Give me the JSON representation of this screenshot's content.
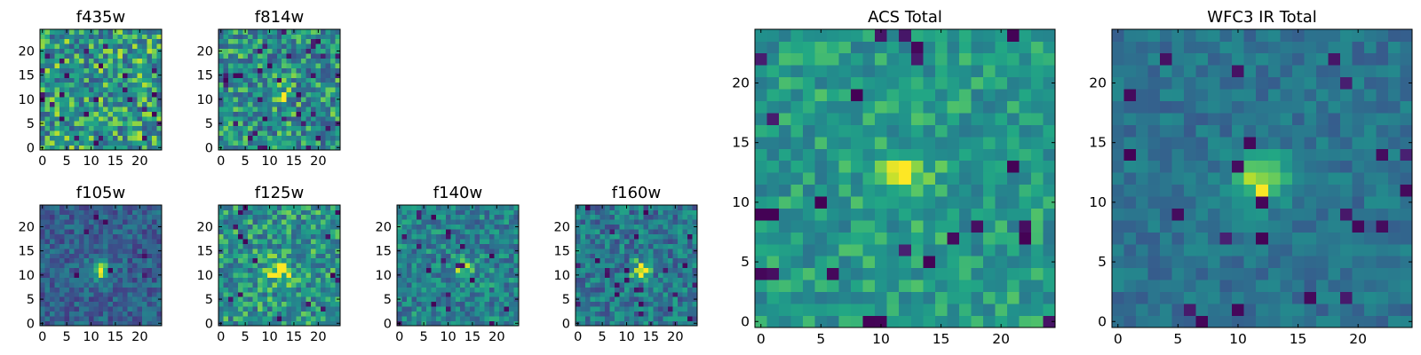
{
  "chart_data": [
    {
      "type": "heatmap",
      "title": "f435w",
      "x_ticks": [
        "0",
        "5",
        "10",
        "15",
        "20"
      ],
      "y_ticks": [
        "0",
        "5",
        "10",
        "15",
        "20"
      ],
      "grid_size": [
        25,
        25
      ],
      "xlim": [
        0,
        25
      ],
      "ylim": [
        0,
        25
      ],
      "colormap": "viridis",
      "pattern": "uniform noise, no central source"
    },
    {
      "type": "heatmap",
      "title": "f814w",
      "x_ticks": [
        "0",
        "5",
        "10",
        "15",
        "20"
      ],
      "y_ticks": [
        "0",
        "5",
        "10",
        "15",
        "20"
      ],
      "grid_size": [
        25,
        25
      ],
      "xlim": [
        0,
        25
      ],
      "ylim": [
        0,
        25
      ],
      "colormap": "viridis",
      "pattern": "noise with faint central source",
      "source_center": [
        12,
        11
      ]
    },
    {
      "type": "heatmap",
      "title": "f105w",
      "x_ticks": [
        "0",
        "5",
        "10",
        "15",
        "20"
      ],
      "y_ticks": [
        "0",
        "5",
        "10",
        "15",
        "20"
      ],
      "grid_size": [
        25,
        25
      ],
      "xlim": [
        0,
        25
      ],
      "ylim": [
        0,
        25
      ],
      "colormap": "viridis",
      "pattern": "darker background with bright central source",
      "source_center": [
        12,
        11
      ]
    },
    {
      "type": "heatmap",
      "title": "f125w",
      "x_ticks": [
        "0",
        "5",
        "10",
        "15",
        "20"
      ],
      "y_ticks": [
        "0",
        "5",
        "10",
        "15",
        "20"
      ],
      "grid_size": [
        25,
        25
      ],
      "xlim": [
        0,
        25
      ],
      "ylim": [
        0,
        25
      ],
      "colormap": "viridis",
      "pattern": "bright noisy background with central source",
      "source_center": [
        12,
        11
      ]
    },
    {
      "type": "heatmap",
      "title": "f140w",
      "x_ticks": [
        "0",
        "5",
        "10",
        "15",
        "20"
      ],
      "y_ticks": [
        "0",
        "5",
        "10",
        "15",
        "20"
      ],
      "grid_size": [
        25,
        25
      ],
      "xlim": [
        0,
        25
      ],
      "ylim": [
        0,
        25
      ],
      "colormap": "viridis",
      "pattern": "noise with compact central source",
      "source_center": [
        13,
        12
      ]
    },
    {
      "type": "heatmap",
      "title": "f160w",
      "x_ticks": [
        "0",
        "5",
        "10",
        "15",
        "20"
      ],
      "y_ticks": [
        "0",
        "5",
        "10",
        "15",
        "20"
      ],
      "grid_size": [
        25,
        25
      ],
      "xlim": [
        0,
        25
      ],
      "ylim": [
        0,
        25
      ],
      "colormap": "viridis",
      "pattern": "noise with compact central source",
      "source_center": [
        13,
        11
      ]
    },
    {
      "type": "heatmap",
      "title": "ACS Total",
      "x_ticks": [
        "0",
        "5",
        "10",
        "15",
        "20"
      ],
      "y_ticks": [
        "0",
        "5",
        "10",
        "15",
        "20"
      ],
      "grid_size": [
        25,
        25
      ],
      "xlim": [
        0,
        25
      ],
      "ylim": [
        0,
        25
      ],
      "colormap": "viridis",
      "pattern": "bright noisy background with central source",
      "source_center": [
        12,
        12
      ]
    },
    {
      "type": "heatmap",
      "title": "WFC3 IR Total",
      "x_ticks": [
        "0",
        "5",
        "10",
        "15",
        "20"
      ],
      "y_ticks": [
        "0",
        "5",
        "10",
        "15",
        "20"
      ],
      "grid_size": [
        25,
        25
      ],
      "xlim": [
        0,
        25
      ],
      "ylim": [
        0,
        25
      ],
      "colormap": "viridis",
      "pattern": "green background with bright central source",
      "source_center": [
        12,
        12
      ]
    }
  ],
  "colors": {
    "axes": "#000000",
    "background": "#ffffff"
  }
}
